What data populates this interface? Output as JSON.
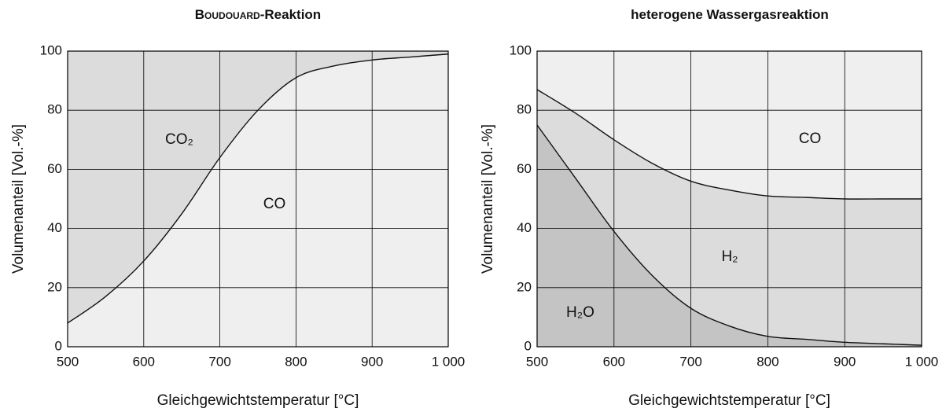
{
  "chart_data": [
    {
      "type": "area",
      "title": [
        "Boudouard",
        "-Reaktion"
      ],
      "x": [
        500,
        550,
        600,
        650,
        700,
        750,
        800,
        850,
        900,
        950,
        1000
      ],
      "series": [
        {
          "name": "CO",
          "color": "#efefef",
          "values": [
            8,
            17,
            29,
            45,
            64,
            80,
            91,
            95,
            97,
            98,
            99
          ]
        },
        {
          "name": "CO₂",
          "color": "#dcdcdc",
          "values": [
            92,
            83,
            71,
            55,
            36,
            20,
            9,
            5,
            3,
            2,
            1
          ]
        }
      ],
      "xlim": [
        500,
        1000
      ],
      "xticks": [
        500,
        600,
        700,
        800,
        900,
        {
          "value": 1000,
          "label": "1 000"
        }
      ],
      "ylim": [
        0,
        100
      ],
      "yticks": [
        0,
        20,
        40,
        60,
        80,
        100
      ],
      "xlabel": "Gleichgewichtstemperatur [°C]",
      "ylabel": "Volumenanteil [Vol.-%]",
      "grid": true
    },
    {
      "type": "area",
      "title": [
        "heterogene Wassergasreaktion"
      ],
      "x": [
        500,
        550,
        600,
        650,
        700,
        750,
        800,
        850,
        900,
        950,
        1000
      ],
      "series": [
        {
          "name": "H₂O",
          "color": "#c4c4c4",
          "values": [
            75,
            57,
            39,
            24,
            13,
            7,
            3.5,
            2.5,
            1.5,
            1,
            0.5
          ]
        },
        {
          "name": "H₂",
          "color": "#dcdcdc",
          "values": [
            12,
            22,
            31,
            38,
            43,
            46,
            47.5,
            48,
            48.5,
            49,
            49.5
          ]
        },
        {
          "name": "CO",
          "color": "#efefef",
          "values": [
            13,
            21,
            30,
            38,
            44,
            47,
            49,
            49.5,
            50,
            50,
            50
          ]
        }
      ],
      "xlim": [
        500,
        1000
      ],
      "xticks": [
        500,
        600,
        700,
        800,
        900,
        {
          "value": 1000,
          "label": "1 000"
        }
      ],
      "ylim": [
        0,
        100
      ],
      "yticks": [
        0,
        20,
        40,
        60,
        80,
        100
      ],
      "xlabel": "Gleichgewichtstemperatur [°C]",
      "ylabel": "Volumenanteil [Vol.-%]",
      "grid": true
    }
  ]
}
